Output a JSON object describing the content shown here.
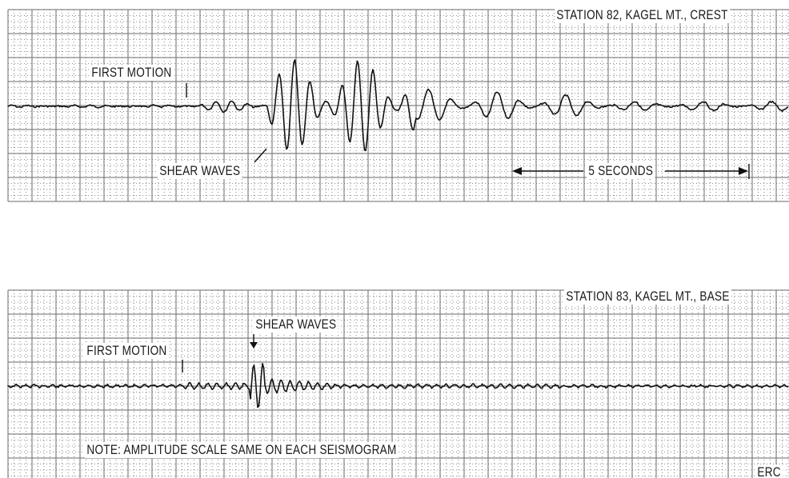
{
  "panels": [
    {
      "id": "station-82",
      "station_label": "STATION 82, KAGEL MT., CREST",
      "first_motion_label": "FIRST MOTION",
      "shear_waves_label": "SHEAR WAVES",
      "scale_label": "5 SECONDS"
    },
    {
      "id": "station-83",
      "station_label": "STATION 83, KAGEL MT., BASE",
      "first_motion_label": "FIRST MOTION",
      "shear_waves_label": "SHEAR WAVES",
      "note_label": "NOTE:  AMPLITUDE SCALE SAME ON EACH SEISMOGRAM",
      "credit_label": "ERC"
    }
  ],
  "colors": {
    "grid": "#6a6a6a",
    "trace": "#111111",
    "paper": "#ffffff"
  }
}
